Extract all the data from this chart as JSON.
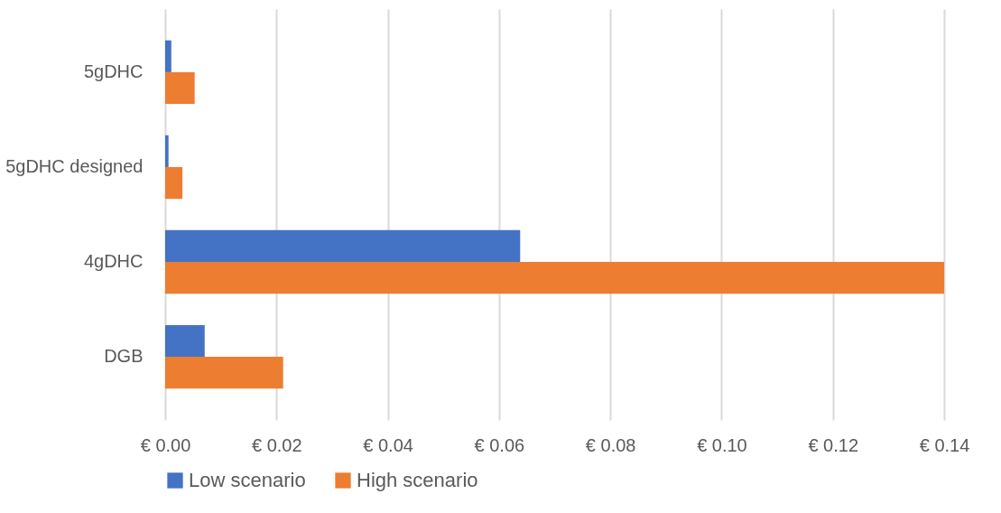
{
  "chart_data": {
    "type": "bar",
    "orientation": "horizontal",
    "categories": [
      "5gDHC",
      "5gDHC designed",
      "4gDHC",
      "DGB"
    ],
    "series": [
      {
        "name": "Low scenario",
        "color": "#4472c4",
        "values": [
          0.0011,
          0.0006,
          0.0638,
          0.0071
        ]
      },
      {
        "name": "High scenario",
        "color": "#ed7d31",
        "values": [
          0.0053,
          0.0031,
          0.14,
          0.0212
        ]
      }
    ],
    "xlim": [
      0,
      0.14
    ],
    "xticks": [
      {
        "value": 0,
        "label": "€ 0.00"
      },
      {
        "value": 0.02,
        "label": "€ 0.02"
      },
      {
        "value": 0.04,
        "label": "€ 0.04"
      },
      {
        "value": 0.06,
        "label": "€ 0.06"
      },
      {
        "value": 0.08,
        "label": "€ 0.08"
      },
      {
        "value": 0.1,
        "label": "€ 0.10"
      },
      {
        "value": 0.12,
        "label": "€ 0.12"
      },
      {
        "value": 0.14,
        "label": "€ 0.14"
      }
    ],
    "grid": "x",
    "legend": "bottom"
  }
}
